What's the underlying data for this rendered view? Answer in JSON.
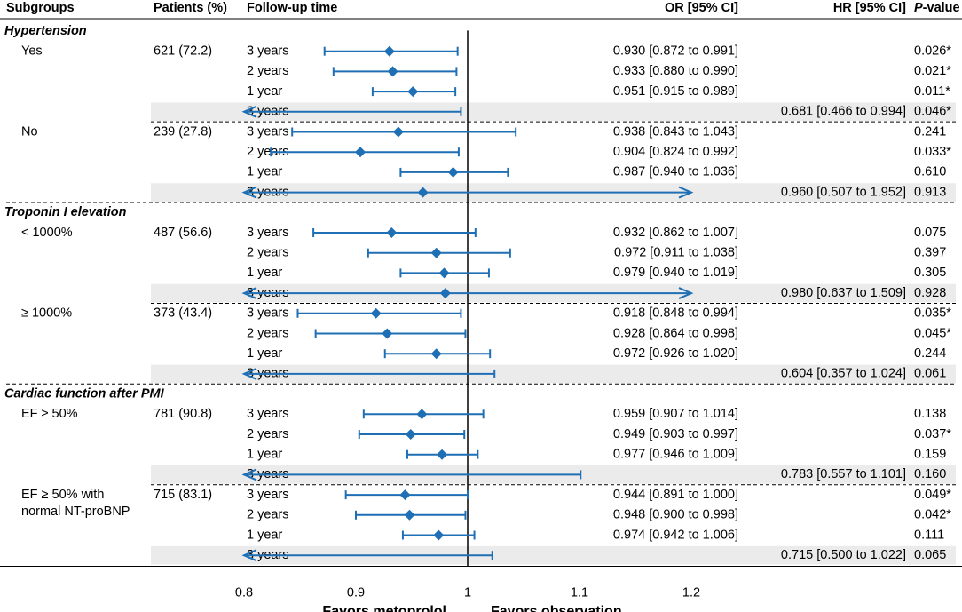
{
  "chart_data": {
    "type": "forest",
    "headers": {
      "subgroups": "Subgroups",
      "patients": "Patients (%)",
      "followup": "Follow-up time",
      "or": "OR [95% CI]",
      "hr": "HR [95% CI]",
      "pvalue_prefix": "P",
      "pvalue_suffix": "-value"
    },
    "x_axis": {
      "ticks": [
        0.8,
        0.9,
        1,
        1.1,
        1.2
      ],
      "tick_labels": [
        "0.8",
        "0.9",
        "1",
        "1.1",
        "1.2"
      ],
      "reference_line": 1,
      "left_label": "Favors metoprolol",
      "right_label": "Favors observation"
    },
    "colors": {
      "marker": "#1f6fb5",
      "shade": "#ebebeb",
      "line": "#000000"
    },
    "groups": [
      {
        "title": "Hypertension",
        "subgroups": [
          {
            "name": [
              "Yes"
            ],
            "patients": "621 (72.2)",
            "rows": [
              {
                "time": "3 years",
                "kind": "OR",
                "est": 0.93,
                "lo": 0.872,
                "hi": 0.991,
                "ci_text": "0.930 [0.872 to 0.991]",
                "p": "0.026*"
              },
              {
                "time": "2 years",
                "kind": "OR",
                "est": 0.933,
                "lo": 0.88,
                "hi": 0.99,
                "ci_text": "0.933 [0.880 to 0.990]",
                "p": "0.021*"
              },
              {
                "time": "1 year",
                "kind": "OR",
                "est": 0.951,
                "lo": 0.915,
                "hi": 0.989,
                "ci_text": "0.951 [0.915 to 0.989]",
                "p": "0.011*"
              },
              {
                "time": "3 years",
                "kind": "HR",
                "est": 0.681,
                "lo": 0.466,
                "hi": 0.994,
                "ci_text": "0.681 [0.466 to 0.994]",
                "p": "0.046*"
              }
            ]
          },
          {
            "name": [
              "No"
            ],
            "patients": "239 (27.8)",
            "rows": [
              {
                "time": "3 years",
                "kind": "OR",
                "est": 0.938,
                "lo": 0.843,
                "hi": 1.043,
                "ci_text": "0.938 [0.843 to 1.043]",
                "p": "0.241"
              },
              {
                "time": "2 years",
                "kind": "OR",
                "est": 0.904,
                "lo": 0.824,
                "hi": 0.992,
                "ci_text": "0.904 [0.824 to 0.992]",
                "p": "0.033*"
              },
              {
                "time": "1 year",
                "kind": "OR",
                "est": 0.987,
                "lo": 0.94,
                "hi": 1.036,
                "ci_text": "0.987 [0.940 to 1.036]",
                "p": "0.610"
              },
              {
                "time": "3 years",
                "kind": "HR",
                "est": 0.96,
                "lo": 0.507,
                "hi": 1.952,
                "ci_text": "0.960 [0.507 to 1.952]",
                "p": "0.913"
              }
            ]
          }
        ]
      },
      {
        "title": "Troponin I elevation",
        "subgroups": [
          {
            "name": [
              "< 1000%"
            ],
            "patients": "487 (56.6)",
            "rows": [
              {
                "time": "3 years",
                "kind": "OR",
                "est": 0.932,
                "lo": 0.862,
                "hi": 1.007,
                "ci_text": "0.932 [0.862 to 1.007]",
                "p": "0.075"
              },
              {
                "time": "2 years",
                "kind": "OR",
                "est": 0.972,
                "lo": 0.911,
                "hi": 1.038,
                "ci_text": "0.972 [0.911 to 1.038]",
                "p": "0.397"
              },
              {
                "time": "1 year",
                "kind": "OR",
                "est": 0.979,
                "lo": 0.94,
                "hi": 1.019,
                "ci_text": "0.979 [0.940 to 1.019]",
                "p": "0.305"
              },
              {
                "time": "3 years",
                "kind": "HR",
                "est": 0.98,
                "lo": 0.637,
                "hi": 1.509,
                "ci_text": "0.980 [0.637 to 1.509]",
                "p": "0.928"
              }
            ]
          },
          {
            "name": [
              "≥ 1000%"
            ],
            "patients": "373 (43.4)",
            "rows": [
              {
                "time": "3 years",
                "kind": "OR",
                "est": 0.918,
                "lo": 0.848,
                "hi": 0.994,
                "ci_text": "0.918 [0.848 to 0.994]",
                "p": "0.035*"
              },
              {
                "time": "2 years",
                "kind": "OR",
                "est": 0.928,
                "lo": 0.864,
                "hi": 0.998,
                "ci_text": "0.928 [0.864 to 0.998]",
                "p": "0.045*"
              },
              {
                "time": "1 year",
                "kind": "OR",
                "est": 0.972,
                "lo": 0.926,
                "hi": 1.02,
                "ci_text": "0.972 [0.926 to 1.020]",
                "p": "0.244"
              },
              {
                "time": "3 years",
                "kind": "HR",
                "est": 0.604,
                "lo": 0.357,
                "hi": 1.024,
                "ci_text": "0.604 [0.357 to 1.024]",
                "p": "0.061"
              }
            ]
          }
        ]
      },
      {
        "title": "Cardiac function after PMI",
        "subgroups": [
          {
            "name": [
              "EF ≥ 50%"
            ],
            "patients": "781 (90.8)",
            "rows": [
              {
                "time": "3 years",
                "kind": "OR",
                "est": 0.959,
                "lo": 0.907,
                "hi": 1.014,
                "ci_text": "0.959 [0.907 to 1.014]",
                "p": "0.138"
              },
              {
                "time": "2 years",
                "kind": "OR",
                "est": 0.949,
                "lo": 0.903,
                "hi": 0.997,
                "ci_text": "0.949 [0.903 to 0.997]",
                "p": "0.037*"
              },
              {
                "time": "1 year",
                "kind": "OR",
                "est": 0.977,
                "lo": 0.946,
                "hi": 1.009,
                "ci_text": "0.977 [0.946 to 1.009]",
                "p": "0.159"
              },
              {
                "time": "3 years",
                "kind": "HR",
                "est": 0.783,
                "lo": 0.557,
                "hi": 1.101,
                "ci_text": "0.783 [0.557 to 1.101]",
                "p": "0.160"
              }
            ]
          },
          {
            "name": [
              "EF ≥ 50% with",
              "normal NT-proBNP"
            ],
            "patients": "715 (83.1)",
            "rows": [
              {
                "time": "3 years",
                "kind": "OR",
                "est": 0.944,
                "lo": 0.891,
                "hi": 1.0,
                "ci_text": "0.944 [0.891 to 1.000]",
                "p": "0.049*"
              },
              {
                "time": "2 years",
                "kind": "OR",
                "est": 0.948,
                "lo": 0.9,
                "hi": 0.998,
                "ci_text": "0.948 [0.900 to 0.998]",
                "p": "0.042*"
              },
              {
                "time": "1 year",
                "kind": "OR",
                "est": 0.974,
                "lo": 0.942,
                "hi": 1.006,
                "ci_text": "0.974 [0.942 to 1.006]",
                "p": "0.111"
              },
              {
                "time": "3 years",
                "kind": "HR",
                "est": 0.715,
                "lo": 0.5,
                "hi": 1.022,
                "ci_text": "0.715 [0.500 to 1.022]",
                "p": "0.065"
              }
            ]
          }
        ]
      }
    ]
  }
}
